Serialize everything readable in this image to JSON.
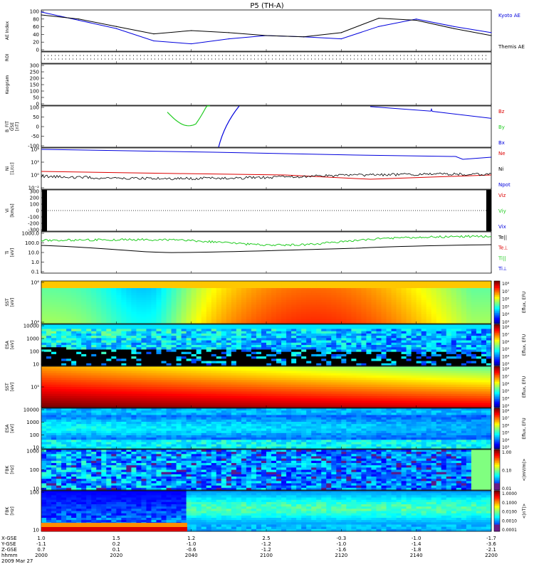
{
  "title": "P5 (TH-A)",
  "colors": {
    "black": "#000000",
    "blue": "#0000dd",
    "red": "#dd0000",
    "green": "#22cc22"
  },
  "x_axis": {
    "row_labels": [
      "X-GSE",
      "Y-GSE",
      "Z-GSE",
      "hhmm",
      "2009 Mar 27"
    ],
    "ticks": [
      [
        "1.0",
        "-1.1",
        "0.7",
        "2000"
      ],
      [
        "1.5",
        "0.2",
        "0.1",
        "2020"
      ],
      [
        "1.2",
        "-1.0",
        "-0.6",
        "2040"
      ],
      [
        "2.5",
        "-1.2",
        "-1.2",
        "2100"
      ],
      [
        "-0.3",
        "-1.0",
        "-1.6",
        "2120"
      ],
      [
        "-1.0",
        "-1.4",
        "-1.8",
        "2140"
      ],
      [
        "-1.7",
        "-3.6",
        "-2.1",
        "2200"
      ]
    ]
  },
  "panels": [
    {
      "ylabel": [
        "AE Index"
      ],
      "ticks": [
        "100",
        "80",
        "60",
        "40",
        "20",
        "0"
      ],
      "legend": [
        {
          "text": "Kyoto AE",
          "color": "#0000dd"
        },
        {
          "text": "Themis AE",
          "color": "#000000"
        }
      ]
    },
    {
      "ylabel": [
        "ROI"
      ],
      "ticks": [],
      "legend": []
    },
    {
      "ylabel": [
        "Keogram"
      ],
      "ticks": [
        "300",
        "250",
        "200",
        "150",
        "100",
        "50",
        "0"
      ],
      "legend": []
    },
    {
      "ylabel": [
        "B_FIT",
        "GSE",
        "[nT]"
      ],
      "ticks": [
        "100",
        "50",
        "0",
        "-50",
        "-100"
      ],
      "legend": [
        {
          "text": "Bz",
          "color": "#dd0000"
        },
        {
          "text": "By",
          "color": "#22cc22"
        },
        {
          "text": "Bx",
          "color": "#0000dd"
        }
      ]
    },
    {
      "ylabel": [
        "Ni",
        "[1/cc]"
      ],
      "ticks": [
        "10⁴",
        "10²",
        "10⁰",
        "10⁻²"
      ],
      "legend": [
        {
          "text": "Ne",
          "color": "#dd0000"
        },
        {
          "text": "Ni",
          "color": "#000000"
        },
        {
          "text": "Npot",
          "color": "#0000dd"
        }
      ]
    },
    {
      "ylabel": [
        "Vi",
        "[km/s]"
      ],
      "ticks": [
        "300",
        "200",
        "100",
        "0",
        "-100",
        "-200",
        "-300"
      ],
      "legend": [
        {
          "text": "Viz",
          "color": "#dd0000"
        },
        {
          "text": "Viy",
          "color": "#22cc22"
        },
        {
          "text": "Vix",
          "color": "#0000dd"
        }
      ]
    },
    {
      "ylabel": [
        "Ti",
        "[eV]"
      ],
      "ticks": [
        "1000.0",
        "100.0",
        "10.0",
        "1.0",
        "0.1"
      ],
      "legend": [
        {
          "text": "Te||",
          "color": "#000000"
        },
        {
          "text": "Te⊥",
          "color": "#dd0000"
        },
        {
          "text": "Ti||",
          "color": "#22cc22"
        },
        {
          "text": "Ti⊥",
          "color": "#0000dd"
        }
      ]
    },
    {
      "ylabel": [
        "SST",
        "[eV]"
      ],
      "ticks": [
        "10⁶",
        "10⁴"
      ],
      "cbar": [
        "10⁸",
        "10⁷",
        "10⁶",
        "10⁵",
        "10⁴",
        "10³"
      ],
      "cbar_label": "Eflux, EFU"
    },
    {
      "ylabel": [
        "ESA",
        "[eV]"
      ],
      "ticks": [
        "10000",
        "1000",
        "100",
        "10"
      ],
      "cbar": [
        "10⁸",
        "10⁷",
        "10⁶",
        "10⁵",
        "10⁴",
        "10³"
      ],
      "cbar_label": "Eflux, EFU"
    },
    {
      "ylabel": [
        "SST",
        "[eV]"
      ],
      "ticks": [
        "10⁵"
      ],
      "cbar": [
        "10⁸",
        "10⁷",
        "10⁶",
        "10⁵",
        "10⁴",
        "10³"
      ],
      "cbar_label": "Eflux, EFU"
    },
    {
      "ylabel": [
        "ESA",
        "[eV]"
      ],
      "ticks": [
        "10000",
        "1000",
        "100",
        "10"
      ],
      "cbar": [
        "10⁸",
        "10⁷",
        "10⁶",
        "10⁵",
        "10⁴",
        "10³"
      ],
      "cbar_label": "Eflux, EFU"
    },
    {
      "ylabel": [
        "FBK",
        "[Hz]"
      ],
      "ticks": [
        "1000",
        "100",
        "10"
      ],
      "cbar": [
        "1.00",
        "0.10",
        "0.01"
      ],
      "cbar_label": "<|mV/m|>"
    },
    {
      "ylabel": [
        "FBK",
        "[Hz]"
      ],
      "ticks": [
        "100",
        "10"
      ],
      "cbar": [
        "1.0000",
        "0.1000",
        "0.0100",
        "0.0010",
        "0.0001"
      ],
      "cbar_label": "<|nT|>"
    }
  ],
  "chart_data": {
    "type": "line",
    "x": [
      2000,
      2010,
      2020,
      2030,
      2040,
      2050,
      2100,
      2110,
      2120,
      2130,
      2140,
      2150,
      2200
    ],
    "series": [
      {
        "name": "Kyoto AE",
        "values": [
          95,
          75,
          55,
          25,
          18,
          30,
          38,
          35,
          30,
          60,
          78,
          60,
          45
        ]
      },
      {
        "name": "Themis AE",
        "values": [
          88,
          78,
          60,
          42,
          50,
          45,
          38,
          35,
          45,
          80,
          75,
          55,
          38
        ]
      }
    ],
    "ylim": [
      0,
      100
    ]
  }
}
